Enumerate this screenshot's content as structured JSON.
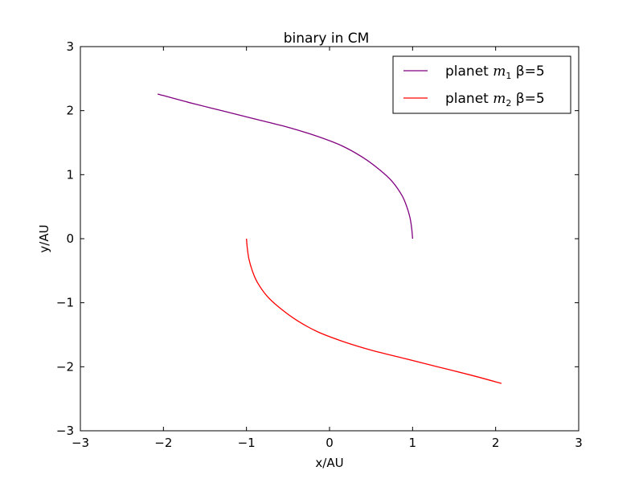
{
  "chart_data": {
    "type": "line",
    "title": "binary in CM",
    "xlabel": "x/AU",
    "ylabel": "y/AU",
    "xlim": [
      -3,
      3
    ],
    "ylim": [
      -3,
      3
    ],
    "xticks": [
      -3,
      -2,
      -1,
      0,
      1,
      2,
      3
    ],
    "yticks": [
      -3,
      -2,
      -1,
      0,
      1,
      2,
      3
    ],
    "xtick_labels": [
      "−3",
      "−2",
      "−1",
      "0",
      "1",
      "2",
      "3"
    ],
    "ytick_labels": [
      "−3",
      "−2",
      "−1",
      "0",
      "1",
      "2",
      "3"
    ],
    "grid": false,
    "legend_position": "top-right",
    "series": [
      {
        "name": "planet m1  β=5",
        "legend_prefix": "planet ",
        "legend_var": "m",
        "legend_sub": "1",
        "legend_suffix": "  β=5",
        "color": "#800080",
        "x": [
          1.0,
          0.99,
          0.97,
          0.93,
          0.87,
          0.75,
          0.6,
          0.4,
          0.15,
          -0.15,
          -0.5,
          -0.9,
          -1.3,
          -1.7,
          -2.07
        ],
        "y": [
          0.0,
          0.15,
          0.32,
          0.5,
          0.68,
          0.9,
          1.08,
          1.27,
          1.45,
          1.6,
          1.74,
          1.87,
          2.0,
          2.13,
          2.26
        ]
      },
      {
        "name": "planet m2  β=5",
        "legend_prefix": "planet ",
        "legend_var": "m",
        "legend_sub": "2",
        "legend_suffix": "  β=5",
        "color": "#ff0000",
        "x": [
          -1.0,
          -0.99,
          -0.97,
          -0.93,
          -0.87,
          -0.75,
          -0.6,
          -0.4,
          -0.15,
          0.15,
          0.5,
          0.9,
          1.3,
          1.7,
          2.07
        ],
        "y": [
          0.0,
          -0.15,
          -0.32,
          -0.5,
          -0.68,
          -0.9,
          -1.08,
          -1.27,
          -1.45,
          -1.6,
          -1.74,
          -1.87,
          -2.0,
          -2.13,
          -2.26
        ]
      }
    ]
  }
}
